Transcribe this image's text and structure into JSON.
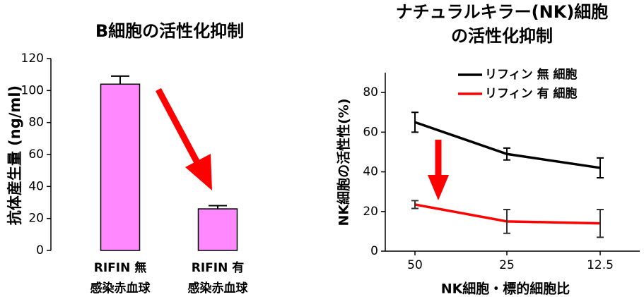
{
  "chart_data": [
    {
      "type": "bar",
      "title": "B細胞の活性化抑制",
      "y_label": "抗体産生量 (ng/ml)",
      "categories": [
        [
          "RIFIN 無",
          "感染赤血球"
        ],
        [
          "RIFIN 有",
          "感染赤血球"
        ]
      ],
      "values": [
        104,
        26
      ],
      "errors": [
        5,
        2
      ],
      "color": "#ff88ff",
      "ylim": [
        0,
        120
      ],
      "yticks": [
        0,
        20,
        40,
        60,
        80,
        100,
        120
      ]
    },
    {
      "type": "line",
      "title": [
        "ナチュラルキラー(NK)細胞",
        "の活性化抑制"
      ],
      "y_label": "NK細胞の活性性(%)",
      "x_label": "NK細胞・標的細胞比",
      "categories": [
        "50",
        "25",
        "12.5"
      ],
      "series": [
        {
          "name": "リフィン 無 細胞",
          "color": "#000000",
          "values": [
            65,
            49,
            42
          ],
          "errors": [
            5,
            3,
            5
          ]
        },
        {
          "name": "リフィン 有 細胞",
          "color": "#ff0000",
          "values": [
            23.5,
            15,
            14
          ],
          "errors": [
            2,
            6,
            7
          ]
        }
      ],
      "ylim": [
        0,
        90
      ],
      "yticks": [
        0,
        20,
        40,
        60,
        80
      ]
    }
  ]
}
